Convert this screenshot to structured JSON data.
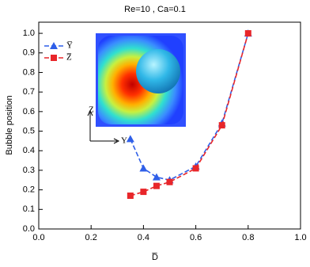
{
  "chart_data": {
    "type": "line",
    "title": "Re=10 , Ca=0.1",
    "xlabel": "D̅",
    "ylabel": "Bubble position",
    "x": [
      0.35,
      0.4,
      0.45,
      0.5,
      0.6,
      0.7,
      0.8
    ],
    "series": [
      {
        "name": "Y̅",
        "color": "#2f5fe8",
        "marker": "triangle",
        "values": [
          0.46,
          0.31,
          0.265,
          0.25,
          0.32,
          0.54,
          1.0
        ]
      },
      {
        "name": "Z̅",
        "color": "#e8262a",
        "marker": "square",
        "values": [
          0.17,
          0.19,
          0.22,
          0.24,
          0.31,
          0.53,
          1.0
        ]
      }
    ],
    "xlim": [
      0,
      1
    ],
    "xticks": [
      {
        "value": 0,
        "label": "0.0"
      },
      0.2,
      0.4,
      0.6,
      0.8,
      {
        "value": 1,
        "label": "1.0"
      }
    ],
    "ylim": [
      0,
      1.057
    ],
    "yticks": [
      {
        "value": 0,
        "label": "0.0"
      },
      0.1,
      0.2,
      0.3,
      0.4,
      0.5,
      0.6,
      0.7,
      0.8,
      0.9,
      {
        "value": 1,
        "label": "1.0"
      }
    ],
    "legend": "upper left",
    "annotations": [
      "Z",
      "Y"
    ]
  }
}
